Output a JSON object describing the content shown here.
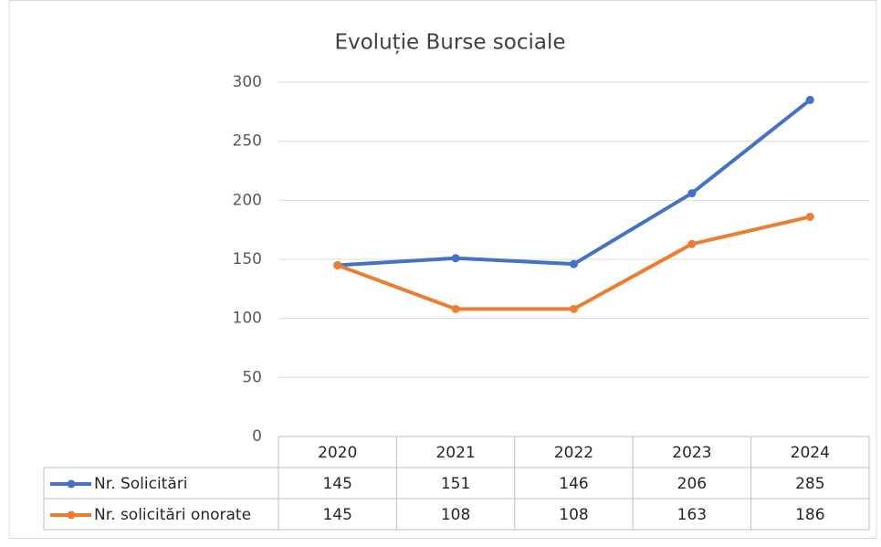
{
  "chart_data": {
    "type": "line",
    "title": "Evoluție Burse sociale",
    "categories": [
      "2020",
      "2021",
      "2022",
      "2023",
      "2024"
    ],
    "series": [
      {
        "name": "Nr. Solicitări",
        "color": "#4472c4",
        "values": [
          145,
          151,
          146,
          206,
          285
        ]
      },
      {
        "name": "Nr. solicitări onorate",
        "color": "#ed7d31",
        "values": [
          145,
          108,
          108,
          163,
          186
        ]
      }
    ],
    "ylim": [
      0,
      300
    ],
    "yticks": [
      0,
      50,
      100,
      150,
      200,
      250,
      300
    ],
    "grid": true,
    "data_table": true
  }
}
